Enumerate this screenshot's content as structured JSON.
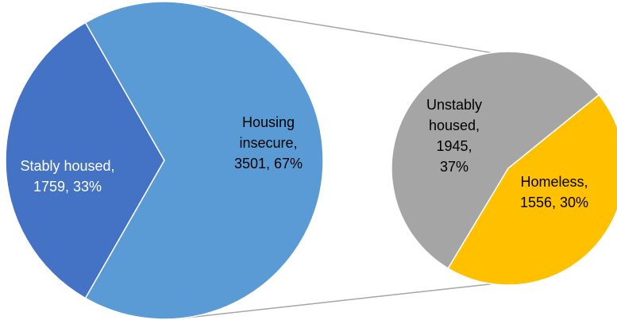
{
  "chart_data": [
    {
      "type": "pie",
      "values": [
        1759,
        3501
      ],
      "value_labels": [
        [
          "Stably housed,",
          "1759, 33%"
        ],
        [
          "Housing",
          "insecure,",
          "3501, 67%"
        ]
      ],
      "colors": [
        "#4472c4",
        "#5b9bd5"
      ]
    },
    {
      "type": "pie",
      "values": [
        1945,
        1556
      ],
      "value_labels": [
        [
          "Unstably",
          "housed,",
          "1945,",
          "37%"
        ],
        [
          "Homeless,",
          "1556, 30%"
        ]
      ],
      "colors": [
        "#a5a5a5",
        "#ffc000"
      ]
    }
  ]
}
